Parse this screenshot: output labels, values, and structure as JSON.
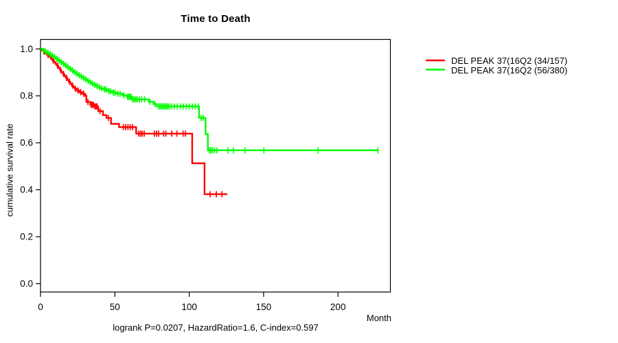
{
  "chart_data": {
    "type": "line",
    "subtype": "kaplan-meier-step-curves",
    "title": "Time to Death",
    "xlabel": "Month",
    "ylabel": "cumulative survival rate",
    "footnote": "logrank P=0.0207, HazardRatio=1.6, C-index=0.597",
    "xlim": [
      0,
      235
    ],
    "ylim": [
      0.0,
      1.0
    ],
    "x_ticks": [
      0,
      50,
      100,
      150,
      200
    ],
    "y_ticks": [
      0.0,
      0.2,
      0.4,
      0.6,
      0.8,
      1.0
    ],
    "grid": false,
    "legend_position": "right-outside",
    "series": [
      {
        "name": "DEL PEAK 37(16Q2 (34/157)",
        "color": "#ff0000",
        "events_total": "34/157",
        "steps": [
          [
            0,
            1.0
          ],
          [
            1,
            0.994
          ],
          [
            2,
            0.988
          ],
          [
            3,
            0.981
          ],
          [
            4.5,
            0.974
          ],
          [
            6,
            0.966
          ],
          [
            7,
            0.958
          ],
          [
            8,
            0.951
          ],
          [
            9,
            0.944
          ],
          [
            10,
            0.936
          ],
          [
            11,
            0.928
          ],
          [
            12,
            0.919
          ],
          [
            13,
            0.91
          ],
          [
            14,
            0.901
          ],
          [
            15,
            0.893
          ],
          [
            16,
            0.885
          ],
          [
            17,
            0.877
          ],
          [
            18,
            0.868
          ],
          [
            19,
            0.86
          ],
          [
            20,
            0.852
          ],
          [
            21,
            0.844
          ],
          [
            22,
            0.837
          ],
          [
            23,
            0.83
          ],
          [
            24.5,
            0.823
          ],
          [
            26,
            0.816
          ],
          [
            28,
            0.809
          ],
          [
            30,
            0.801
          ],
          [
            30.8,
            0.774
          ],
          [
            33.5,
            0.762
          ],
          [
            36,
            0.755
          ],
          [
            38.8,
            0.735
          ],
          [
            42,
            0.718
          ],
          [
            44.3,
            0.706
          ],
          [
            47.4,
            0.681
          ],
          [
            52.8,
            0.667
          ],
          [
            64.3,
            0.639
          ],
          [
            102,
            0.513
          ],
          [
            110.3,
            0.381
          ],
          [
            125.6,
            0.381
          ]
        ],
        "censors": [
          [
            2.5,
            0.988
          ],
          [
            5,
            0.974
          ],
          [
            8.5,
            0.951
          ],
          [
            11.5,
            0.928
          ],
          [
            13.5,
            0.91
          ],
          [
            15.5,
            0.893
          ],
          [
            17.5,
            0.877
          ],
          [
            19.5,
            0.86
          ],
          [
            21.5,
            0.844
          ],
          [
            23.5,
            0.83
          ],
          [
            25.2,
            0.823
          ],
          [
            27,
            0.816
          ],
          [
            29,
            0.809
          ],
          [
            31.9,
            0.774
          ],
          [
            34,
            0.762
          ],
          [
            34.8,
            0.762
          ],
          [
            35.6,
            0.762
          ],
          [
            36.5,
            0.755
          ],
          [
            37.3,
            0.755
          ],
          [
            38,
            0.755
          ],
          [
            40,
            0.735
          ],
          [
            45.6,
            0.706
          ],
          [
            55.7,
            0.667
          ],
          [
            57.2,
            0.667
          ],
          [
            58.8,
            0.667
          ],
          [
            60.3,
            0.667
          ],
          [
            61.9,
            0.667
          ],
          [
            66,
            0.639
          ],
          [
            67.2,
            0.639
          ],
          [
            68.3,
            0.639
          ],
          [
            69.7,
            0.639
          ],
          [
            76.6,
            0.639
          ],
          [
            78,
            0.639
          ],
          [
            79.4,
            0.639
          ],
          [
            82.8,
            0.639
          ],
          [
            84.3,
            0.639
          ],
          [
            88.2,
            0.639
          ],
          [
            91.7,
            0.639
          ],
          [
            95.9,
            0.639
          ],
          [
            97.4,
            0.639
          ],
          [
            114,
            0.381
          ],
          [
            118.2,
            0.381
          ],
          [
            122,
            0.381
          ]
        ]
      },
      {
        "name": "DEL PEAK 37(16Q2 (56/380)",
        "color": "#00ff00",
        "events_total": "56/380",
        "steps": [
          [
            0,
            1.0
          ],
          [
            1.5,
            0.995
          ],
          [
            3,
            0.989
          ],
          [
            4.5,
            0.984
          ],
          [
            6,
            0.978
          ],
          [
            7.5,
            0.972
          ],
          [
            9,
            0.965
          ],
          [
            10.5,
            0.958
          ],
          [
            12,
            0.951
          ],
          [
            13.5,
            0.944
          ],
          [
            15,
            0.937
          ],
          [
            16.5,
            0.93
          ],
          [
            18,
            0.922
          ],
          [
            19.5,
            0.915
          ],
          [
            21,
            0.908
          ],
          [
            22.5,
            0.901
          ],
          [
            24,
            0.894
          ],
          [
            25.5,
            0.888
          ],
          [
            27,
            0.882
          ],
          [
            28.5,
            0.876
          ],
          [
            30,
            0.87
          ],
          [
            31.5,
            0.864
          ],
          [
            33,
            0.858
          ],
          [
            34.5,
            0.852
          ],
          [
            36,
            0.847
          ],
          [
            37.5,
            0.842
          ],
          [
            39,
            0.837
          ],
          [
            40.5,
            0.832
          ],
          [
            42,
            0.828
          ],
          [
            45,
            0.82
          ],
          [
            48,
            0.814
          ],
          [
            51,
            0.809
          ],
          [
            55,
            0.802
          ],
          [
            58,
            0.796
          ],
          [
            61.3,
            0.785
          ],
          [
            72.8,
            0.775
          ],
          [
            75.9,
            0.765
          ],
          [
            78.2,
            0.755
          ],
          [
            106.6,
            0.706
          ],
          [
            111,
            0.637
          ],
          [
            112.5,
            0.568
          ],
          [
            227.4,
            0.568
          ]
        ],
        "censors": [
          [
            2,
            0.992
          ],
          [
            3.5,
            0.989
          ],
          [
            5,
            0.984
          ],
          [
            6.5,
            0.978
          ],
          [
            8,
            0.972
          ],
          [
            9.5,
            0.965
          ],
          [
            11,
            0.958
          ],
          [
            12.5,
            0.951
          ],
          [
            14,
            0.944
          ],
          [
            15.5,
            0.937
          ],
          [
            17,
            0.93
          ],
          [
            18.5,
            0.922
          ],
          [
            20,
            0.915
          ],
          [
            21.5,
            0.908
          ],
          [
            23,
            0.901
          ],
          [
            24.5,
            0.894
          ],
          [
            26,
            0.888
          ],
          [
            27.5,
            0.882
          ],
          [
            29,
            0.876
          ],
          [
            30.5,
            0.87
          ],
          [
            32,
            0.864
          ],
          [
            33.5,
            0.858
          ],
          [
            35,
            0.852
          ],
          [
            36.5,
            0.847
          ],
          [
            38,
            0.842
          ],
          [
            39.5,
            0.837
          ],
          [
            41,
            0.832
          ],
          [
            43,
            0.828
          ],
          [
            44,
            0.828
          ],
          [
            46,
            0.82
          ],
          [
            47,
            0.82
          ],
          [
            49,
            0.814
          ],
          [
            50,
            0.814
          ],
          [
            52,
            0.809
          ],
          [
            53.5,
            0.809
          ],
          [
            56,
            0.802
          ],
          [
            58.5,
            0.796
          ],
          [
            59.3,
            0.796
          ],
          [
            60.1,
            0.796
          ],
          [
            60.9,
            0.796
          ],
          [
            62,
            0.785
          ],
          [
            63,
            0.785
          ],
          [
            64,
            0.785
          ],
          [
            65,
            0.785
          ],
          [
            66.5,
            0.785
          ],
          [
            68,
            0.785
          ],
          [
            70,
            0.785
          ],
          [
            73.5,
            0.775
          ],
          [
            77,
            0.765
          ],
          [
            79.5,
            0.755
          ],
          [
            80.5,
            0.755
          ],
          [
            81.5,
            0.755
          ],
          [
            82.5,
            0.755
          ],
          [
            83.5,
            0.755
          ],
          [
            84.5,
            0.755
          ],
          [
            85.5,
            0.755
          ],
          [
            86.5,
            0.755
          ],
          [
            88,
            0.755
          ],
          [
            90,
            0.755
          ],
          [
            92,
            0.755
          ],
          [
            94,
            0.755
          ],
          [
            96,
            0.755
          ],
          [
            98,
            0.755
          ],
          [
            100,
            0.755
          ],
          [
            102,
            0.755
          ],
          [
            104,
            0.755
          ],
          [
            106,
            0.755
          ],
          [
            108,
            0.706
          ],
          [
            109.5,
            0.706
          ],
          [
            113.5,
            0.568
          ],
          [
            114.5,
            0.568
          ],
          [
            115.6,
            0.568
          ],
          [
            117,
            0.568
          ],
          [
            118.6,
            0.568
          ],
          [
            125.9,
            0.568
          ],
          [
            129.7,
            0.568
          ],
          [
            137.4,
            0.568
          ],
          [
            150.2,
            0.568
          ],
          [
            186.6,
            0.568
          ],
          [
            226.8,
            0.568
          ]
        ]
      }
    ],
    "colors": {
      "axis": "#000000",
      "text": "#000000",
      "background": "#ffffff"
    }
  }
}
